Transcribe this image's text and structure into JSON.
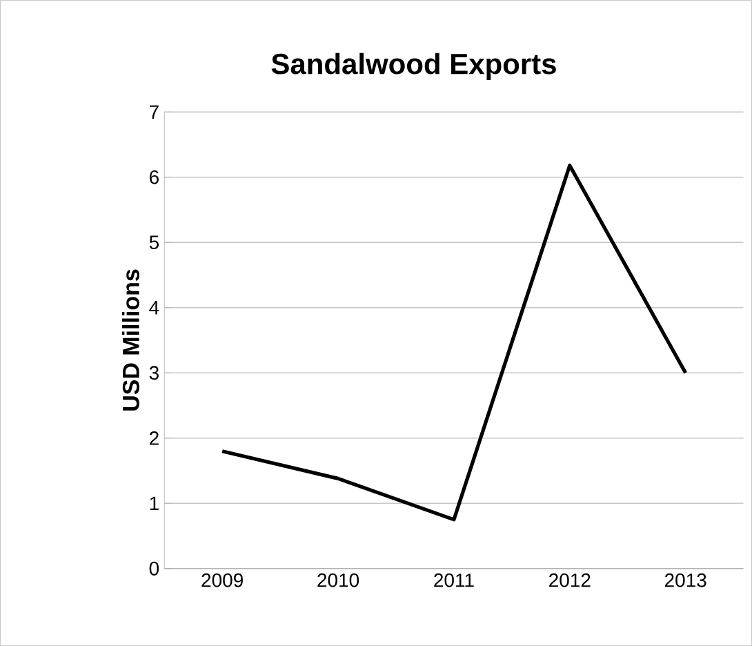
{
  "chart_data": {
    "type": "line",
    "title": "Sandalwood Exports",
    "ylabel": "USD Millions",
    "categories": [
      "2009",
      "2010",
      "2011",
      "2012",
      "2013"
    ],
    "values": [
      1.8,
      1.38,
      0.75,
      6.18,
      3.0
    ],
    "color": "#000000",
    "ylim": [
      0,
      7
    ],
    "yticks": [
      0,
      1,
      2,
      3,
      4,
      5,
      6,
      7
    ],
    "grid": "y",
    "marker": "none",
    "line_style": "solid"
  }
}
